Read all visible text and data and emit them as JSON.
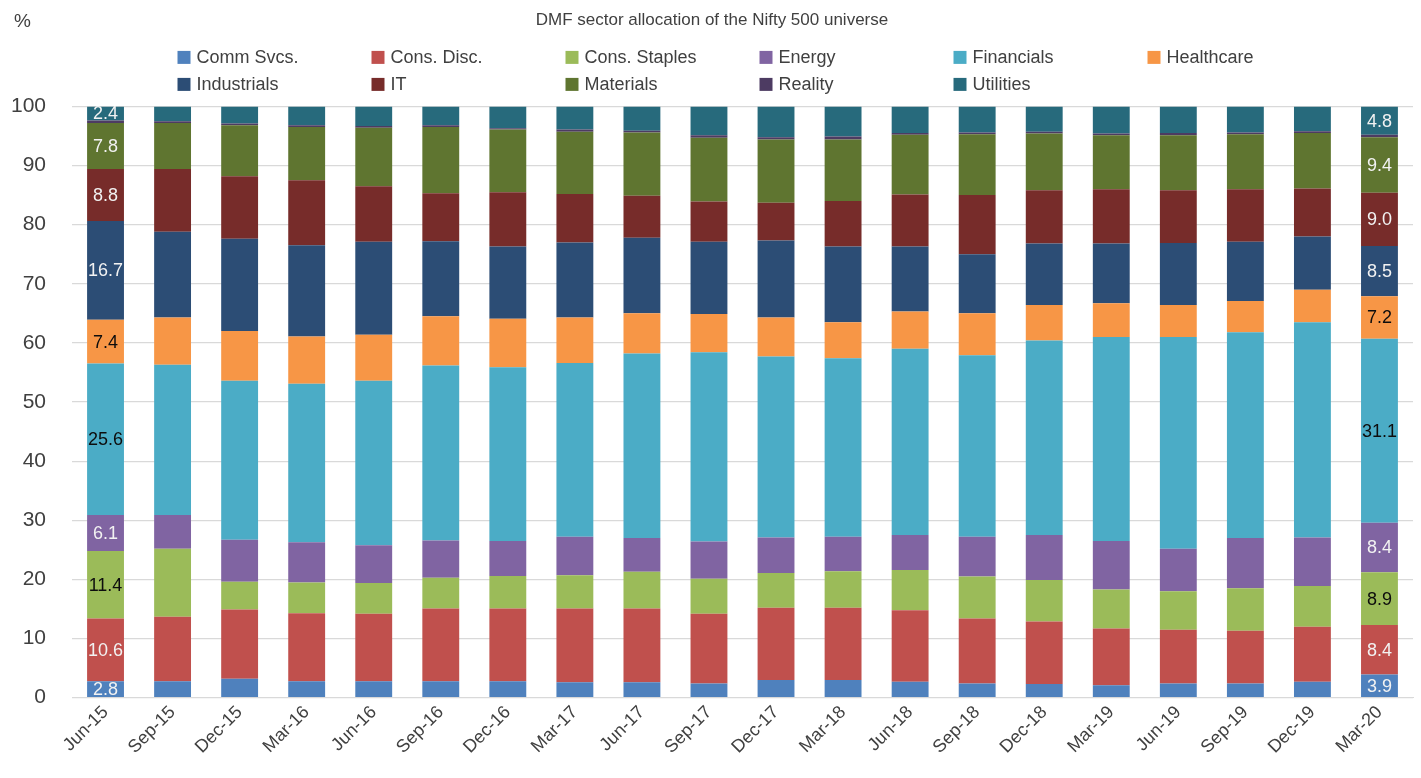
{
  "chart_data": {
    "type": "bar",
    "title": "DMF sector allocation of the Nifty 500 universe",
    "ylabel": "%",
    "categories": [
      "Jun-15",
      "Sep-15",
      "Dec-15",
      "Mar-16",
      "Jun-16",
      "Sep-16",
      "Dec-16",
      "Mar-17",
      "Jun-17",
      "Sep-17",
      "Dec-17",
      "Mar-18",
      "Jun-18",
      "Sep-18",
      "Dec-18",
      "Mar-19",
      "Jun-19",
      "Sep-19",
      "Dec-19",
      "Mar-20"
    ],
    "stacked": true,
    "ylim": [
      0,
      100
    ],
    "yticks": [
      0,
      10,
      20,
      30,
      40,
      50,
      60,
      70,
      80,
      90,
      100
    ],
    "grid": "y",
    "legend": "top",
    "series": [
      {
        "name": "Comm Svcs.",
        "color": "#4f81bd",
        "values": [
          2.8,
          2.8,
          3.2,
          2.8,
          2.8,
          2.8,
          2.8,
          2.6,
          2.6,
          2.4,
          3.0,
          3.0,
          2.7,
          2.4,
          2.3,
          2.1,
          2.4,
          2.4,
          2.7,
          3.9
        ],
        "value_labels": [
          "2.8",
          null,
          null,
          null,
          null,
          null,
          null,
          null,
          null,
          null,
          null,
          null,
          null,
          null,
          null,
          null,
          null,
          null,
          null,
          "3.9"
        ]
      },
      {
        "name": "Cons. Disc.",
        "color": "#c0504d",
        "values": [
          10.6,
          10.9,
          11.7,
          11.5,
          11.4,
          12.3,
          12.3,
          12.5,
          12.5,
          11.8,
          12.2,
          12.2,
          12.1,
          11.0,
          10.6,
          9.6,
          9.1,
          8.9,
          9.3,
          8.4
        ],
        "value_labels": [
          "10.6",
          null,
          null,
          null,
          null,
          null,
          null,
          null,
          null,
          null,
          null,
          null,
          null,
          null,
          null,
          null,
          null,
          null,
          null,
          "8.4"
        ]
      },
      {
        "name": "Cons. Staples",
        "color": "#9bbb59",
        "values": [
          11.4,
          11.5,
          4.7,
          5.2,
          5.2,
          5.2,
          5.5,
          5.6,
          6.2,
          5.9,
          5.9,
          6.2,
          6.8,
          7.1,
          7.0,
          6.6,
          6.5,
          7.2,
          6.9,
          8.9
        ],
        "value_labels": [
          "11.4",
          null,
          null,
          null,
          null,
          null,
          null,
          null,
          null,
          null,
          null,
          null,
          null,
          null,
          null,
          null,
          null,
          null,
          null,
          "8.9"
        ]
      },
      {
        "name": "Energy",
        "color": "#8064a2",
        "values": [
          6.1,
          5.7,
          7.1,
          6.8,
          6.4,
          6.3,
          5.9,
          6.5,
          5.7,
          6.3,
          6.0,
          5.8,
          5.9,
          6.7,
          7.6,
          8.2,
          7.2,
          8.5,
          8.2,
          8.4
        ],
        "value_labels": [
          "6.1",
          null,
          null,
          null,
          null,
          null,
          null,
          null,
          null,
          null,
          null,
          null,
          null,
          null,
          null,
          null,
          null,
          null,
          null,
          "8.4"
        ]
      },
      {
        "name": "Financials",
        "color": "#4bacc6",
        "values": [
          25.6,
          25.4,
          26.9,
          26.8,
          27.8,
          29.6,
          29.4,
          29.4,
          31.2,
          32.0,
          30.6,
          30.2,
          31.5,
          30.7,
          32.9,
          34.5,
          35.8,
          34.8,
          36.4,
          31.1
        ],
        "value_labels": [
          "25.6",
          null,
          null,
          null,
          null,
          null,
          null,
          null,
          null,
          null,
          null,
          null,
          null,
          null,
          null,
          null,
          null,
          null,
          null,
          "31.1"
        ]
      },
      {
        "name": "Healthcare",
        "color": "#f79646",
        "values": [
          7.4,
          8.0,
          8.4,
          8.0,
          7.8,
          8.3,
          8.2,
          7.7,
          6.8,
          6.5,
          6.6,
          6.1,
          6.3,
          7.1,
          6.0,
          5.7,
          5.4,
          5.3,
          5.5,
          7.2
        ],
        "value_labels": [
          "7.4",
          null,
          null,
          null,
          null,
          null,
          null,
          null,
          null,
          null,
          null,
          null,
          null,
          null,
          null,
          null,
          null,
          null,
          null,
          "7.2"
        ]
      },
      {
        "name": "Industrials",
        "color": "#2c4d75",
        "values": [
          16.7,
          14.5,
          15.6,
          15.4,
          15.7,
          12.7,
          12.2,
          12.7,
          12.8,
          12.2,
          13.0,
          12.8,
          11.0,
          10.0,
          10.4,
          10.1,
          10.5,
          10.0,
          9.0,
          8.5
        ],
        "value_labels": [
          "16.7",
          null,
          null,
          null,
          null,
          null,
          null,
          null,
          null,
          null,
          null,
          null,
          null,
          null,
          null,
          null,
          null,
          null,
          null,
          "8.5"
        ]
      },
      {
        "name": "IT",
        "color": "#772c2a",
        "values": [
          8.8,
          10.6,
          10.6,
          11.0,
          9.4,
          8.1,
          9.2,
          8.2,
          7.1,
          6.8,
          6.4,
          7.7,
          8.8,
          10.0,
          9.0,
          9.2,
          8.9,
          8.9,
          8.1,
          9.0
        ],
        "value_labels": [
          "8.8",
          null,
          null,
          null,
          null,
          null,
          null,
          null,
          null,
          null,
          null,
          null,
          null,
          null,
          null,
          null,
          null,
          null,
          null,
          "9.0"
        ]
      },
      {
        "name": "Materials",
        "color": "#5f7530",
        "values": [
          7.8,
          7.8,
          8.6,
          9.0,
          9.9,
          11.2,
          10.6,
          10.5,
          10.7,
          10.8,
          10.7,
          10.4,
          10.1,
          10.3,
          9.6,
          9.1,
          9.3,
          9.3,
          9.4,
          9.4
        ],
        "value_labels": [
          "7.8",
          null,
          null,
          null,
          null,
          null,
          null,
          null,
          null,
          null,
          null,
          null,
          null,
          null,
          null,
          null,
          null,
          null,
          null,
          "9.4"
        ]
      },
      {
        "name": "Reality",
        "color": "#4d3b62",
        "values": [
          0.4,
          0.3,
          0.3,
          0.3,
          0.3,
          0.3,
          0.2,
          0.4,
          0.3,
          0.4,
          0.4,
          0.5,
          0.3,
          0.3,
          0.3,
          0.3,
          0.4,
          0.3,
          0.3,
          0.4
        ]
      },
      {
        "name": "Utilities",
        "color": "#276a7c",
        "values": [
          2.4,
          2.5,
          2.9,
          3.2,
          3.3,
          3.2,
          3.7,
          3.9,
          4.1,
          4.9,
          5.2,
          5.1,
          4.5,
          4.4,
          4.3,
          4.6,
          4.5,
          4.4,
          4.2,
          4.8
        ],
        "value_labels": [
          "2.4",
          null,
          null,
          null,
          null,
          null,
          null,
          null,
          null,
          null,
          null,
          null,
          null,
          null,
          null,
          null,
          null,
          null,
          null,
          "4.8"
        ]
      }
    ]
  }
}
